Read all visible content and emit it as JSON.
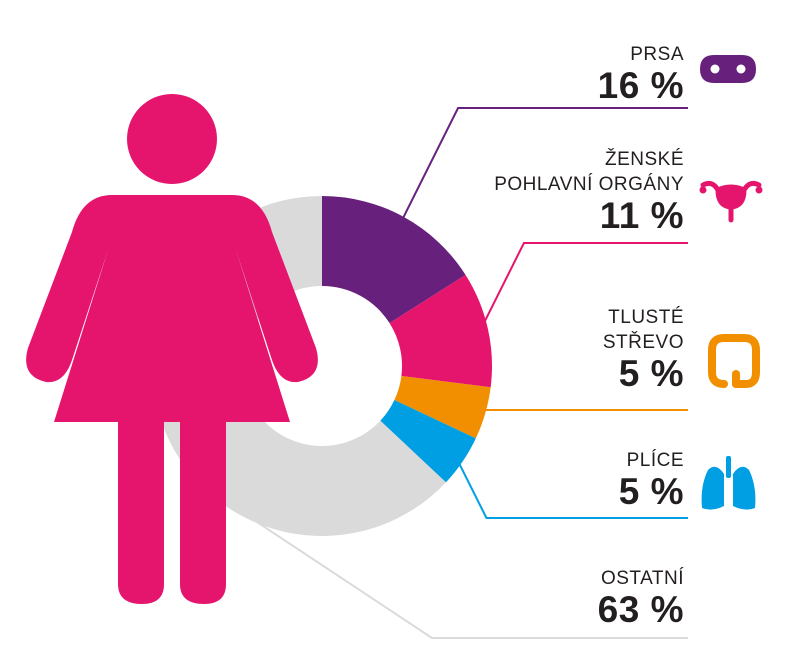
{
  "chart_data": {
    "type": "donut",
    "categories": [
      "PRSA",
      "ŽENSKÉ POHLAVNÍ ORGÁNY",
      "TLUSTÉ STŘEVO",
      "PLÍCE",
      "OSTATNÍ"
    ],
    "values": [
      16,
      11,
      5,
      5,
      63
    ],
    "display_values": [
      "16 %",
      "11 %",
      "5 %",
      "5 %",
      "63 %"
    ],
    "label_lines": [
      [
        "PRSA"
      ],
      [
        "ŽENSKÉ",
        "POHLAVNÍ ORGÁNY"
      ],
      [
        "TLUSTÉ",
        "STŘEVO"
      ],
      [
        "PLÍCE"
      ],
      [
        "OSTATNÍ"
      ]
    ],
    "colors": [
      "#67217d",
      "#e5156e",
      "#f18f00",
      "#009fe3",
      "#dadada"
    ],
    "icons": [
      "breasts-icon",
      "uterus-icon",
      "colon-icon",
      "lungs-icon",
      ""
    ],
    "figure_color": "#e5156e",
    "figure_icon": "woman-icon"
  }
}
